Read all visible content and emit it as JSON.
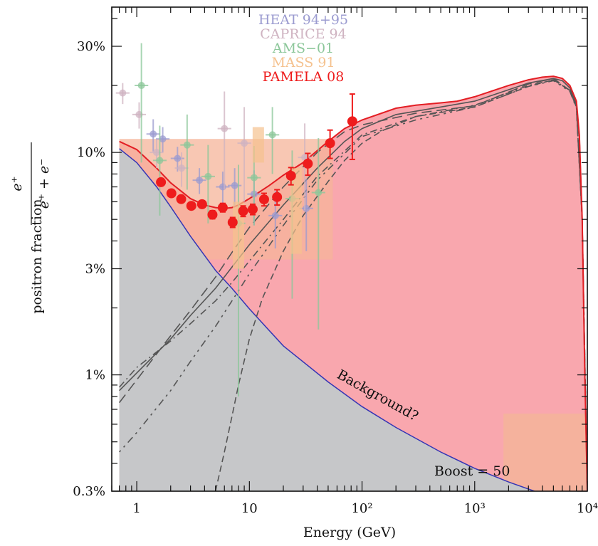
{
  "chart_data": {
    "type": "scatter",
    "xlabel": "Energy (GeV)",
    "ylabel_text": "positron  fraction",
    "ylabel_num": "e⁺",
    "ylabel_den": "e⁺ + e⁻",
    "x_scale": "log",
    "y_scale": "log",
    "xlim": [
      0.6,
      10000
    ],
    "ylim": [
      0.003,
      0.45
    ],
    "x_ticks": [
      {
        "value": 1,
        "label": "1"
      },
      {
        "value": 10,
        "label": "10"
      },
      {
        "value": 100,
        "label": "10²"
      },
      {
        "value": 1000,
        "label": "10³"
      },
      {
        "value": 10000,
        "label": "10⁴"
      }
    ],
    "y_ticks": [
      {
        "value": 0.003,
        "label": "0.3%"
      },
      {
        "value": 0.01,
        "label": "1%"
      },
      {
        "value": 0.03,
        "label": "3%"
      },
      {
        "value": 0.1,
        "label": "10%"
      },
      {
        "value": 0.3,
        "label": "30%"
      }
    ],
    "legend_position": "top-center",
    "series": [
      {
        "name": "HEAT 94+95",
        "color": "#9b9bd0",
        "marker": "circle-errorbar",
        "x": [
          1.4,
          1.7,
          2.3,
          3.6,
          5.8,
          7.4,
          11,
          17,
          32
        ],
        "y": [
          0.121,
          0.115,
          0.094,
          0.075,
          0.07,
          0.071,
          0.065,
          0.052,
          0.056
        ],
        "yerr": [
          0.02,
          0.015,
          0.012,
          0.01,
          0.012,
          0.014,
          0.018,
          0.015,
          0.02
        ]
      },
      {
        "name": "CAPRICE 94",
        "color": "#cfb3c1",
        "marker": "circle-errorbar",
        "x": [
          0.75,
          1.05,
          1.5,
          2.5,
          6,
          9,
          31
        ],
        "y": [
          0.185,
          0.148,
          0.1,
          0.085,
          0.128,
          0.11,
          0.095
        ],
        "yerr": [
          0.02,
          0.02,
          0.015,
          0.015,
          0.06,
          0.05,
          0.04
        ]
      },
      {
        "name": "AMS−01",
        "color": "#8cc79a",
        "marker": "circle-errorbar",
        "x": [
          1.1,
          1.6,
          2.8,
          4.3,
          8,
          11,
          16,
          24,
          41
        ],
        "y": [
          0.2,
          0.092,
          0.108,
          0.078,
          0.048,
          0.077,
          0.12,
          0.062,
          0.066
        ],
        "yerr": [
          0.11,
          0.04,
          0.04,
          0.03,
          0.04,
          0.03,
          0.04,
          0.04,
          0.05
        ]
      },
      {
        "name": "MASS 91",
        "color": "#f5c28f",
        "marker": "box",
        "x": [
          8,
          12,
          26
        ],
        "y": [
          0.045,
          0.11,
          0.06
        ],
        "yerr": [
          0.015,
          0.02,
          0.025
        ]
      },
      {
        "name": "PAMELA 08",
        "color": "#ee1c1c",
        "marker": "circle-errorbar",
        "x": [
          1.64,
          2.03,
          2.48,
          3.05,
          3.8,
          4.7,
          5.8,
          7.1,
          8.8,
          10.7,
          13.5,
          17.6,
          23.4,
          33,
          52,
          82
        ],
        "y": [
          0.0735,
          0.0655,
          0.0617,
          0.0575,
          0.0585,
          0.0525,
          0.0565,
          0.0485,
          0.0545,
          0.0555,
          0.0615,
          0.063,
          0.0785,
          0.089,
          0.11,
          0.138
        ],
        "yerr": [
          0.0025,
          0.0022,
          0.002,
          0.002,
          0.002,
          0.0022,
          0.0025,
          0.0025,
          0.003,
          0.003,
          0.004,
          0.005,
          0.007,
          0.01,
          0.016,
          0.045
        ]
      }
    ],
    "curves": {
      "total": {
        "x": [
          0.7,
          1,
          1.5,
          2,
          3,
          4,
          5,
          6,
          7,
          8,
          10,
          15,
          20,
          30,
          50,
          70,
          100,
          200,
          300,
          500,
          700,
          1000,
          2000,
          3000,
          4000,
          5000,
          6000,
          7000,
          8000,
          8500,
          9000,
          9500,
          10000
        ],
        "y": [
          0.112,
          0.103,
          0.085,
          0.073,
          0.062,
          0.058,
          0.0565,
          0.056,
          0.0565,
          0.058,
          0.062,
          0.071,
          0.079,
          0.09,
          0.112,
          0.128,
          0.14,
          0.158,
          0.163,
          0.167,
          0.17,
          0.178,
          0.2,
          0.212,
          0.218,
          0.22,
          0.215,
          0.2,
          0.17,
          0.12,
          0.05,
          0.01,
          0.003
        ]
      },
      "background": {
        "x": [
          0.7,
          1,
          1.5,
          2,
          3,
          5,
          7,
          10,
          20,
          50,
          100,
          200,
          500,
          1000,
          2000,
          5000,
          10000
        ],
        "y": [
          0.104,
          0.09,
          0.07,
          0.057,
          0.042,
          0.0295,
          0.0245,
          0.0198,
          0.0135,
          0.0093,
          0.0072,
          0.0058,
          0.0045,
          0.0038,
          0.0033,
          0.0028,
          0.0026
        ]
      },
      "components": [
        {
          "dash": "none",
          "x": [
            0.7,
            1,
            2,
            3,
            5,
            7,
            10,
            20,
            40,
            70,
            100,
            200,
            500,
            1000,
            3000,
            5000,
            6000,
            7000,
            8000,
            8500,
            9000,
            9500,
            10000
          ],
          "y": [
            0.0085,
            0.0102,
            0.0145,
            0.0185,
            0.0245,
            0.0305,
            0.0385,
            0.058,
            0.085,
            0.112,
            0.128,
            0.148,
            0.16,
            0.17,
            0.205,
            0.215,
            0.21,
            0.195,
            0.165,
            0.12,
            0.05,
            0.01,
            0.003
          ]
        },
        {
          "dash": "long",
          "x": [
            0.7,
            1,
            2,
            3,
            5,
            7,
            10,
            20,
            40,
            70,
            100,
            300,
            1000,
            3000,
            5000,
            7000,
            8000,
            9000,
            10000
          ],
          "y": [
            0.0075,
            0.0095,
            0.015,
            0.0195,
            0.0275,
            0.0355,
            0.046,
            0.07,
            0.1,
            0.124,
            0.133,
            0.15,
            0.162,
            0.203,
            0.215,
            0.19,
            0.16,
            0.05,
            0.003
          ]
        },
        {
          "dash": "dashdot",
          "x": [
            0.7,
            1,
            2,
            3,
            5,
            7,
            10,
            20,
            40,
            100,
            300,
            1000,
            3000,
            5000,
            7000,
            8000,
            9000,
            10000
          ],
          "y": [
            0.0088,
            0.0108,
            0.0142,
            0.017,
            0.0215,
            0.026,
            0.0325,
            0.05,
            0.078,
            0.12,
            0.145,
            0.163,
            0.2,
            0.212,
            0.19,
            0.16,
            0.05,
            0.003
          ]
        },
        {
          "dash": "dotted",
          "x": [
            0.7,
            1,
            2,
            3,
            5,
            7,
            10,
            20,
            40,
            100,
            300,
            1000,
            3000,
            5000,
            7000,
            8000,
            9000,
            10000
          ],
          "y": [
            0.0045,
            0.0055,
            0.0085,
            0.0115,
            0.0165,
            0.0215,
            0.0285,
            0.047,
            0.075,
            0.118,
            0.14,
            0.16,
            0.198,
            0.21,
            0.188,
            0.158,
            0.05,
            0.003
          ]
        },
        {
          "dash": "short",
          "x": [
            5,
            6,
            7,
            8,
            10,
            13,
            20,
            30,
            50,
            70,
            100,
            150,
            300,
            1000,
            3000,
            5000,
            7000,
            8000,
            9000,
            10000
          ],
          "y": [
            0.003,
            0.0045,
            0.0065,
            0.009,
            0.0145,
            0.022,
            0.036,
            0.052,
            0.074,
            0.092,
            0.11,
            0.125,
            0.145,
            0.16,
            0.198,
            0.212,
            0.19,
            0.16,
            0.05,
            0.003
          ]
        }
      ]
    },
    "annotations": {
      "background_label": "Background?",
      "boost_label": "Boost = 50"
    },
    "colors": {
      "total_fill": "#f9a7ae",
      "low_energy_overlap_fill": "#f5b49a",
      "background_fill": "#c6c7c9",
      "total_line": "#e31e24",
      "background_line": "#3535b5",
      "component_line": "#555555"
    }
  }
}
